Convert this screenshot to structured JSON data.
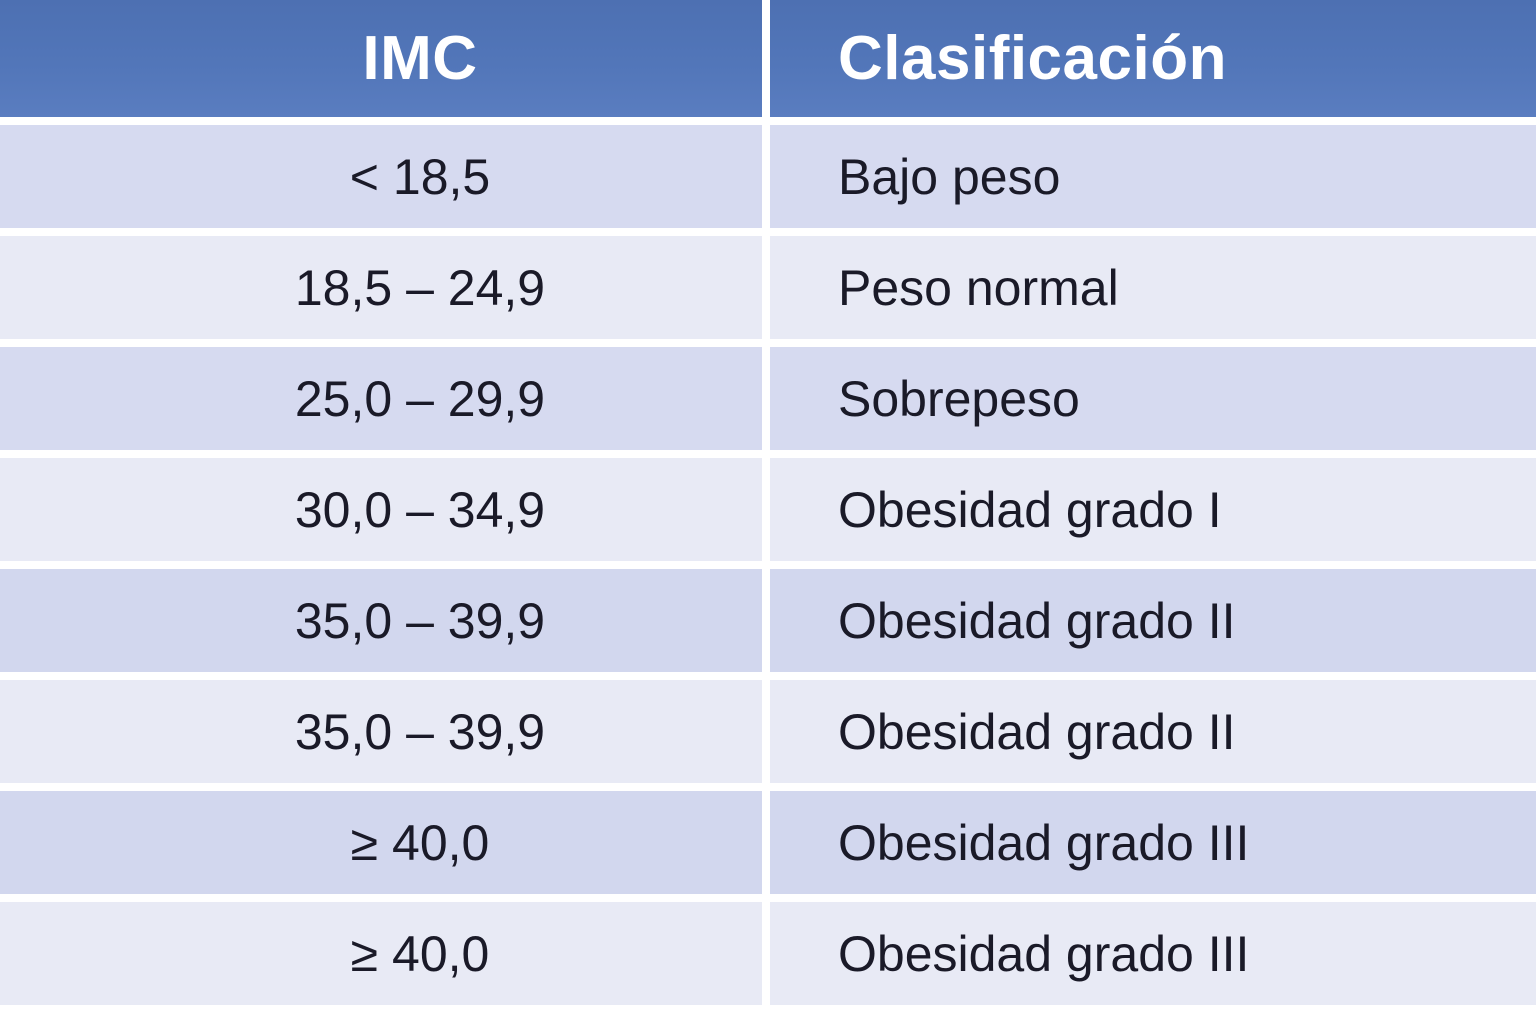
{
  "chart_data": {
    "type": "table",
    "columns": [
      "IMC",
      "Clasificación"
    ],
    "rows": [
      [
        "< 18,5",
        "Bajo peso"
      ],
      [
        "18,5 – 24,9",
        "Peso normal"
      ],
      [
        "25,0 – 29,9",
        "Sobrepeso"
      ],
      [
        "30,0 – 34,9",
        "Obesidad grado I"
      ],
      [
        "35,0 – 39,9",
        "Obesidad grado II"
      ],
      [
        "35,0 – 39,9",
        "Obesidad grado II"
      ],
      [
        "≥ 40,0",
        "Obesidad grado III"
      ],
      [
        "≥ 40,0",
        "Obesidad grado III"
      ]
    ],
    "layout": {
      "header_position": "top",
      "imc_column_alignment": "center",
      "clasificacion_column_alignment": "left",
      "grid": "white gutters between rows and columns"
    }
  },
  "colors": {
    "header_bg": "#5276b9",
    "header_text": "#ffffff",
    "row_odd_bg": "#d6daf0",
    "row_even_bg": "#e8eaf5",
    "cell_text": "#1a1a28",
    "gutter": "#ffffff"
  }
}
